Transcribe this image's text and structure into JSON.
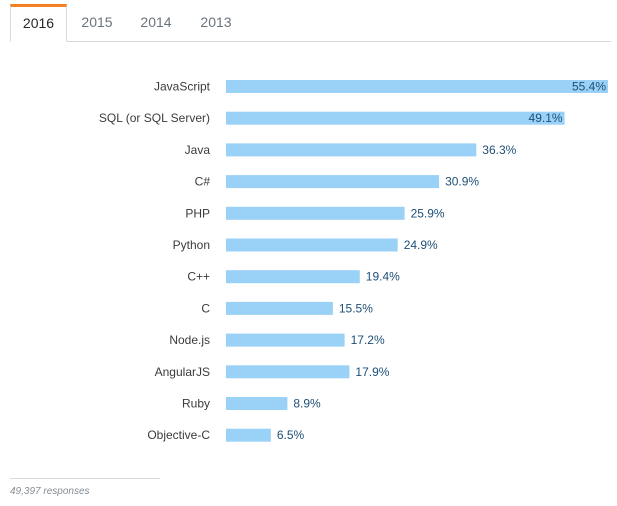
{
  "tabs": [
    {
      "label": "2016",
      "active": true
    },
    {
      "label": "2015",
      "active": false
    },
    {
      "label": "2014",
      "active": false
    },
    {
      "label": "2013",
      "active": false
    }
  ],
  "colors": {
    "bar": "#99d1f7",
    "value_text": "#1e4f77",
    "active_tab_accent": "#f48024"
  },
  "chart_data": {
    "type": "bar",
    "orientation": "horizontal",
    "categories": [
      "JavaScript",
      "SQL (or SQL Server)",
      "Java",
      "C#",
      "PHP",
      "Python",
      "C++",
      "C",
      "Node.js",
      "AngularJS",
      "Ruby",
      "Objective-C"
    ],
    "values": [
      55.4,
      49.1,
      36.3,
      30.9,
      25.9,
      24.9,
      19.4,
      15.5,
      17.2,
      17.9,
      8.9,
      6.5
    ],
    "value_labels": [
      "55.4%",
      "49.1%",
      "36.3%",
      "30.9%",
      "25.9%",
      "24.9%",
      "19.4%",
      "15.5%",
      "17.2%",
      "17.9%",
      "8.9%",
      "6.5%"
    ],
    "xlim": [
      0,
      55.4
    ],
    "grid": false
  },
  "footer": {
    "responses": "49,397 responses"
  }
}
